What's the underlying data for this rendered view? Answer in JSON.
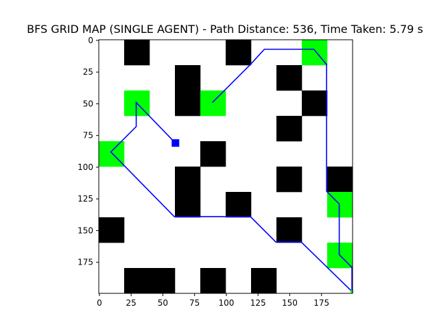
{
  "chart_data": {
    "type": "heatmap",
    "title": "BFS GRID MAP (SINGLE AGENT) - Path Distance: 536, Time Taken: 5.79 s",
    "xlabel": "",
    "ylabel": "",
    "grid_size": [
      200,
      200
    ],
    "xlim": [
      0,
      200
    ],
    "ylim": [
      200,
      0
    ],
    "cell": 20,
    "xticks": [
      0,
      25,
      50,
      75,
      100,
      125,
      150,
      175
    ],
    "yticks": [
      0,
      25,
      50,
      75,
      100,
      125,
      150,
      175
    ],
    "grid": false,
    "colors": {
      "empty": "#ffffff",
      "obstacle": "#000000",
      "goal": "#00ff00",
      "path": "#0000ff",
      "agent": "#0000ff"
    },
    "obstacles": [
      [
        20,
        0
      ],
      [
        100,
        0
      ],
      [
        60,
        20
      ],
      [
        140,
        20
      ],
      [
        60,
        40
      ],
      [
        160,
        40
      ],
      [
        140,
        60
      ],
      [
        80,
        80
      ],
      [
        60,
        100
      ],
      [
        140,
        100
      ],
      [
        180,
        100
      ],
      [
        60,
        120
      ],
      [
        100,
        120
      ],
      [
        0,
        140
      ],
      [
        140,
        140
      ],
      [
        20,
        180
      ],
      [
        40,
        180
      ],
      [
        80,
        180
      ],
      [
        120,
        180
      ]
    ],
    "goals": [
      [
        160,
        0
      ],
      [
        20,
        40
      ],
      [
        80,
        40
      ],
      [
        0,
        80
      ],
      [
        180,
        120
      ],
      [
        180,
        160
      ]
    ],
    "agent": [
      58,
      79
    ],
    "path": [
      [
        58,
        79
      ],
      [
        29,
        49
      ],
      [
        29,
        68
      ],
      [
        9,
        88
      ],
      [
        59,
        139
      ],
      [
        119,
        139
      ],
      [
        139,
        159
      ],
      [
        159,
        159
      ],
      [
        199,
        198
      ],
      [
        199,
        179
      ],
      [
        189,
        169
      ],
      [
        189,
        129
      ],
      [
        179,
        119
      ],
      [
        179,
        19
      ],
      [
        169,
        7
      ],
      [
        130,
        7
      ],
      [
        119,
        19
      ],
      [
        89,
        49
      ]
    ]
  }
}
